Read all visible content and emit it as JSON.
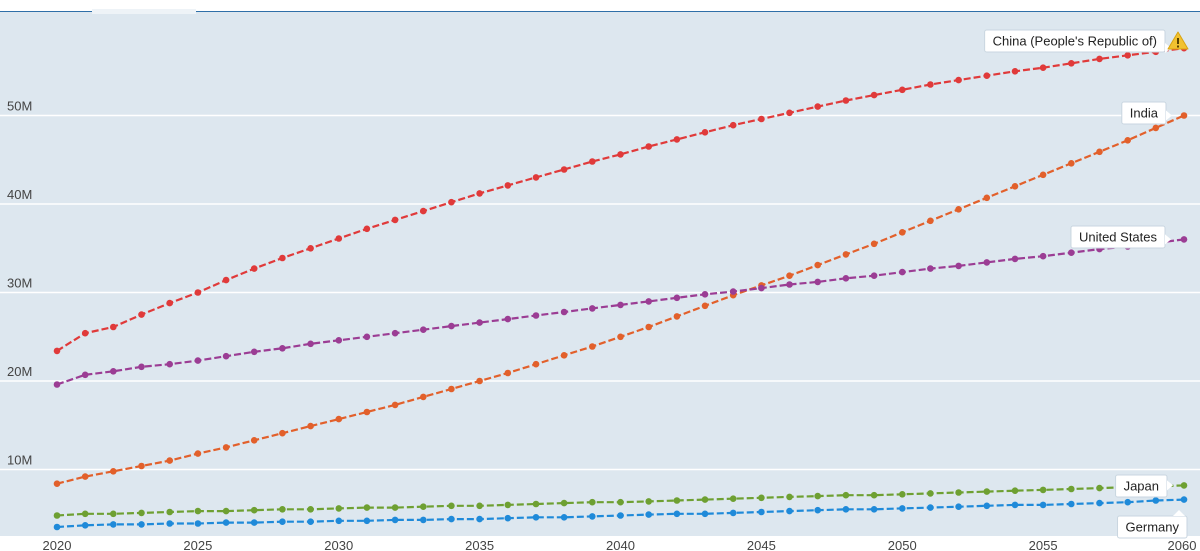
{
  "chart_data": {
    "type": "line",
    "title": "",
    "xlabel": "",
    "ylabel": "",
    "x": [
      2020,
      2021,
      2022,
      2023,
      2024,
      2025,
      2026,
      2027,
      2028,
      2029,
      2030,
      2031,
      2032,
      2033,
      2034,
      2035,
      2036,
      2037,
      2038,
      2039,
      2040,
      2041,
      2042,
      2043,
      2044,
      2045,
      2046,
      2047,
      2048,
      2049,
      2050,
      2051,
      2052,
      2053,
      2054,
      2055,
      2056,
      2057,
      2058,
      2059,
      2060
    ],
    "xticks": [
      "2020",
      "2025",
      "2030",
      "2035",
      "2040",
      "2045",
      "2050",
      "2055",
      "2060"
    ],
    "yticks": [
      "10M",
      "20M",
      "30M",
      "40M",
      "50M"
    ],
    "ylim": [
      0,
      60000000
    ],
    "grid": true,
    "series": [
      {
        "name": "China (People's Republic of)",
        "color": "#e03a3a",
        "warning_icon": "warning-icon",
        "values": [
          23400000,
          25400000,
          26100000,
          27500000,
          28800000,
          30000000,
          31400000,
          32700000,
          33900000,
          35000000,
          36100000,
          37200000,
          38200000,
          39200000,
          40200000,
          41200000,
          42100000,
          43000000,
          43900000,
          44800000,
          45600000,
          46500000,
          47300000,
          48100000,
          48900000,
          49600000,
          50300000,
          51000000,
          51700000,
          52300000,
          52900000,
          53500000,
          54000000,
          54500000,
          55000000,
          55400000,
          55900000,
          56400000,
          56800000,
          57200000,
          57600000
        ]
      },
      {
        "name": "India",
        "color": "#e2602b",
        "values": [
          8400000,
          9200000,
          9800000,
          10400000,
          11000000,
          11800000,
          12500000,
          13300000,
          14100000,
          14900000,
          15700000,
          16500000,
          17300000,
          18200000,
          19100000,
          20000000,
          20900000,
          21900000,
          22900000,
          23900000,
          25000000,
          26100000,
          27300000,
          28500000,
          29700000,
          30800000,
          31900000,
          33100000,
          34300000,
          35500000,
          36800000,
          38100000,
          39400000,
          40700000,
          42000000,
          43300000,
          44600000,
          45900000,
          47200000,
          48600000,
          50000000
        ]
      },
      {
        "name": "United States",
        "color": "#9b3d94",
        "values": [
          19600000,
          20700000,
          21100000,
          21600000,
          21900000,
          22300000,
          22800000,
          23300000,
          23700000,
          24200000,
          24600000,
          25000000,
          25400000,
          25800000,
          26200000,
          26600000,
          27000000,
          27400000,
          27800000,
          28200000,
          28600000,
          29000000,
          29400000,
          29800000,
          30100000,
          30500000,
          30900000,
          31200000,
          31600000,
          31900000,
          32300000,
          32700000,
          33000000,
          33400000,
          33800000,
          34100000,
          34500000,
          34900000,
          35200000,
          35600000,
          36000000
        ]
      },
      {
        "name": "Japan",
        "color": "#6ea032",
        "values": [
          4800000,
          5000000,
          5000000,
          5100000,
          5200000,
          5300000,
          5300000,
          5400000,
          5500000,
          5500000,
          5600000,
          5700000,
          5700000,
          5800000,
          5900000,
          5900000,
          6000000,
          6100000,
          6200000,
          6300000,
          6300000,
          6400000,
          6500000,
          6600000,
          6700000,
          6800000,
          6900000,
          7000000,
          7100000,
          7100000,
          7200000,
          7300000,
          7400000,
          7500000,
          7600000,
          7700000,
          7800000,
          7900000,
          8000000,
          8100000,
          8200000
        ]
      },
      {
        "name": "Germany",
        "color": "#1f8ad9",
        "values": [
          3500000,
          3700000,
          3800000,
          3800000,
          3900000,
          3900000,
          4000000,
          4000000,
          4100000,
          4100000,
          4200000,
          4200000,
          4300000,
          4300000,
          4400000,
          4400000,
          4500000,
          4600000,
          4600000,
          4700000,
          4800000,
          4900000,
          5000000,
          5000000,
          5100000,
          5200000,
          5300000,
          5400000,
          5500000,
          5500000,
          5600000,
          5700000,
          5800000,
          5900000,
          6000000,
          6000000,
          6100000,
          6200000,
          6300000,
          6500000,
          6600000
        ]
      }
    ]
  }
}
